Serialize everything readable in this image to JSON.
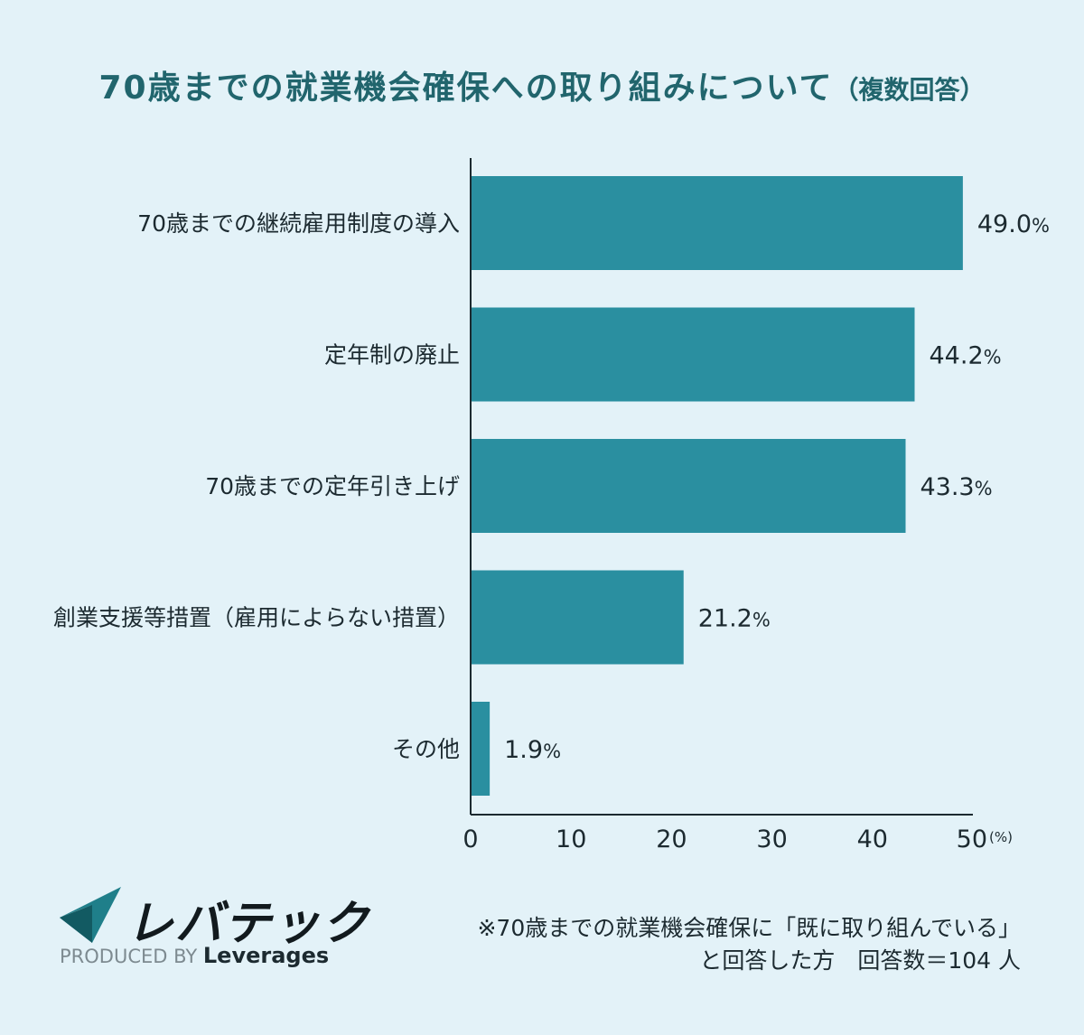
{
  "title": {
    "main": "70歳までの就業機会確保への取り組みについて",
    "sub": "（複数回答）"
  },
  "chart_data": {
    "type": "bar",
    "orientation": "horizontal",
    "categories": [
      "70歳までの継続雇用制度の導入",
      "定年制の廃止",
      "70歳までの定年引き上げ",
      "創業支援等措置（雇用によらない措置）",
      "その他"
    ],
    "values": [
      49.0,
      44.2,
      43.3,
      21.2,
      1.9
    ],
    "value_labels": [
      "49.0",
      "44.2",
      "43.3",
      "21.2",
      "1.9"
    ],
    "value_suffix": "%",
    "xlim": [
      0,
      50
    ],
    "xticks": [
      "0",
      "10",
      "20",
      "30",
      "40",
      "50"
    ],
    "xunit": "(%)",
    "bar_color": "#2a8fa0",
    "grid": false
  },
  "logo": {
    "name": "レバテック",
    "produced_by": "PRODUCED BY",
    "brand": "Leverages"
  },
  "note": {
    "line1": "※70歳までの就業機会確保に「既に取り組んでいる」",
    "line2": "と回答した方　回答数＝104 人"
  }
}
